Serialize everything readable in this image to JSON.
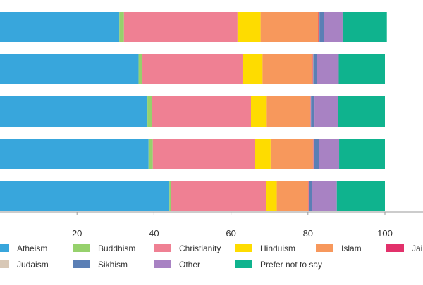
{
  "chart_data": {
    "type": "bar",
    "orientation": "horizontal",
    "stacked": true,
    "x_ticks": [
      20,
      40,
      60,
      80,
      100
    ],
    "xlim": [
      0,
      100
    ],
    "grid": false,
    "legend_position": "bottom",
    "series": [
      {
        "name": "Atheism",
        "color": "#38a6dc",
        "values": [
          31.0,
          36.0,
          38.3,
          38.6,
          44.0
        ]
      },
      {
        "name": "Buddhism",
        "color": "#96d16c",
        "values": [
          1.2,
          1.0,
          1.1,
          1.1,
          0.5
        ]
      },
      {
        "name": "Christianity",
        "color": "#ef8093",
        "values": [
          29.5,
          26.0,
          25.8,
          26.6,
          24.7
        ]
      },
      {
        "name": "Hinduism",
        "color": "#fedc00",
        "values": [
          6.0,
          5.2,
          4.1,
          4.0,
          2.7
        ]
      },
      {
        "name": "Islam",
        "color": "#f7985c",
        "values": [
          15.0,
          13.0,
          11.3,
          11.0,
          8.2
        ]
      },
      {
        "name": "Jainism",
        "color": "#e2316b",
        "values": [
          0.1,
          0.1,
          0.1,
          0.1,
          0.1
        ]
      },
      {
        "name": "Judaism",
        "color": "#d8c8b6",
        "values": [
          0.2,
          0.1,
          0.1,
          0.2,
          0.1
        ]
      },
      {
        "name": "Sikhism",
        "color": "#5b7fb5",
        "values": [
          1.1,
          1.0,
          0.9,
          1.2,
          0.8
        ]
      },
      {
        "name": "Other",
        "color": "#a882c3",
        "values": [
          4.9,
          5.6,
          6.1,
          5.3,
          6.4
        ]
      },
      {
        "name": "Prefer not to say",
        "color": "#0fb38e",
        "values": [
          11.5,
          12.0,
          12.2,
          11.9,
          12.5
        ]
      }
    ]
  }
}
